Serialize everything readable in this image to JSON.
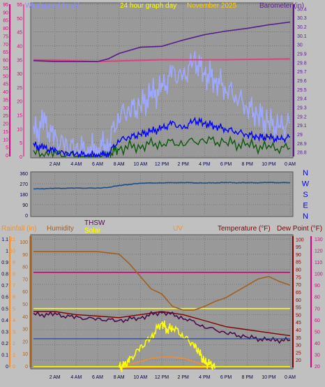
{
  "header": {
    "windspeed_label": "Windspeed (mph)",
    "graph_label": "24 hour graph day",
    "date_label": "November 2025",
    "barometer_label": "Barometer (in)"
  },
  "labels": {
    "rainfall": "Rainfall (in)",
    "humidity": "Humidity",
    "thsw": "THSW",
    "solar": "Solar",
    "uv": "UV",
    "temperature": "Temperature (°F)",
    "dew_point": "Dew Point (°F)"
  },
  "colors": {
    "wind_axis": "#e0007f",
    "barometer": "#5a1a8c",
    "wind_gust": "#9fa8ff",
    "wind_avg": "#0000ff",
    "wind_low": "#0a5a0a",
    "baro_red": "#e0407f",
    "direction": "#1a4f8c",
    "rain_axis": "#ff8c1a",
    "humidity": "#a06020",
    "thsw": "#4b0a4b",
    "solar": "#ffff00",
    "uv": "#ff8c1a",
    "temperature": "#800000",
    "dew_point": "#e0007f"
  },
  "x_ticks": [
    "2 AM",
    "4 AM",
    "6 AM",
    "8 AM",
    "10 AM",
    "12 PM",
    "2 PM",
    "4 PM",
    "6 PM",
    "8 PM",
    "10 PM",
    "0 AM"
  ],
  "chart_data": [
    {
      "type": "line",
      "name": "wind-barometer",
      "y_left_ticks": [
        "0",
        "5",
        "10",
        "15",
        "20",
        "25",
        "30",
        "35",
        "40",
        "45",
        "50",
        "55",
        "60",
        "65",
        "70",
        "75",
        "80",
        "85",
        "90",
        "95"
      ],
      "y_mid_ticks": [
        "0",
        "5",
        "10",
        "15",
        "20",
        "25",
        "30",
        "35",
        "40",
        "45",
        "50",
        "55"
      ],
      "y_right_ticks": [
        "28.8",
        "28.9",
        "29",
        "29.1",
        "29.2",
        "29.3",
        "29.4",
        "29.5",
        "29.6",
        "29.7",
        "29.8",
        "29.9",
        "30",
        "30.1",
        "30.2",
        "30.3",
        "30.4"
      ],
      "ylim_wind": [
        0,
        55
      ],
      "ylim_baro": [
        28.75,
        30.45
      ],
      "barometer": [
        [
          0,
          29.82
        ],
        [
          2,
          29.81
        ],
        [
          4,
          29.81
        ],
        [
          6,
          29.81
        ],
        [
          7,
          29.84
        ],
        [
          8,
          29.9
        ],
        [
          10,
          29.97
        ],
        [
          12,
          29.98
        ],
        [
          14,
          30.05
        ],
        [
          16,
          30.11
        ],
        [
          18,
          30.15
        ],
        [
          20,
          30.18
        ],
        [
          22,
          30.22
        ],
        [
          24,
          30.25
        ]
      ],
      "barometer_red": [
        [
          0,
          29.83
        ],
        [
          6,
          29.81
        ],
        [
          12,
          29.83
        ],
        [
          18,
          29.83
        ],
        [
          24,
          29.84
        ]
      ],
      "wind_gust_max": [
        [
          0,
          8
        ],
        [
          1,
          12
        ],
        [
          2,
          6
        ],
        [
          3,
          4
        ],
        [
          4,
          3
        ],
        [
          5,
          2
        ],
        [
          6,
          3
        ],
        [
          7,
          5
        ],
        [
          8,
          15
        ],
        [
          9,
          17
        ],
        [
          10,
          18
        ],
        [
          11,
          22
        ],
        [
          12,
          24
        ],
        [
          13,
          30
        ],
        [
          14,
          28
        ],
        [
          15,
          35
        ],
        [
          16,
          30
        ],
        [
          17,
          28
        ],
        [
          18,
          25
        ],
        [
          19,
          22
        ],
        [
          20,
          18
        ],
        [
          21,
          15
        ],
        [
          22,
          12
        ],
        [
          23,
          10
        ],
        [
          24,
          12
        ]
      ],
      "wind_avg": [
        [
          0,
          4
        ],
        [
          1,
          3
        ],
        [
          2,
          2
        ],
        [
          3,
          1
        ],
        [
          4,
          1
        ],
        [
          5,
          0.5
        ],
        [
          6,
          0.5
        ],
        [
          7,
          1
        ],
        [
          8,
          6
        ],
        [
          9,
          7
        ],
        [
          10,
          8
        ],
        [
          11,
          9
        ],
        [
          12,
          10
        ],
        [
          13,
          12
        ],
        [
          14,
          10
        ],
        [
          15,
          13
        ],
        [
          16,
          12
        ],
        [
          17,
          11
        ],
        [
          18,
          10
        ],
        [
          19,
          9
        ],
        [
          20,
          8
        ],
        [
          21,
          7
        ],
        [
          22,
          7
        ],
        [
          23,
          6
        ],
        [
          24,
          7
        ]
      ],
      "wind_low": [
        [
          0,
          1
        ],
        [
          2,
          0.5
        ],
        [
          4,
          0
        ],
        [
          6,
          0
        ],
        [
          7,
          0.5
        ],
        [
          8,
          3
        ],
        [
          10,
          4
        ],
        [
          12,
          5
        ],
        [
          14,
          5
        ],
        [
          16,
          6
        ],
        [
          18,
          5
        ],
        [
          20,
          4
        ],
        [
          22,
          3
        ],
        [
          24,
          3
        ]
      ]
    },
    {
      "type": "line",
      "name": "wind-direction",
      "y_left_ticks": [
        "0",
        "90",
        "180",
        "270",
        "360"
      ],
      "y_right_ticks": [
        "N",
        "E",
        "S",
        "W",
        "N"
      ],
      "ylim": [
        0,
        360
      ],
      "direction": [
        [
          0,
          225
        ],
        [
          2,
          230
        ],
        [
          4,
          232
        ],
        [
          6,
          232
        ],
        [
          7,
          238
        ],
        [
          8,
          255
        ],
        [
          9,
          265
        ],
        [
          10,
          275
        ],
        [
          12,
          278
        ],
        [
          14,
          280
        ],
        [
          16,
          276
        ],
        [
          18,
          280
        ],
        [
          20,
          278
        ],
        [
          22,
          280
        ],
        [
          24,
          279
        ]
      ]
    },
    {
      "type": "line",
      "name": "rain-temperature",
      "y_rain_ticks": [
        "0",
        "0.1",
        "0.2",
        "0.3",
        "0.4",
        "0.5",
        "0.6",
        "0.7",
        "0.8",
        "0.9",
        "1",
        "1.1"
      ],
      "y_hum_ticks": [
        "0",
        "10",
        "20",
        "30",
        "40",
        "50",
        "60",
        "70",
        "80",
        "90",
        "100"
      ],
      "y_uv_ticks": [
        "0",
        "1",
        "2",
        "3",
        "4",
        "5",
        "6",
        "7",
        "8",
        "9",
        "10",
        "11"
      ],
      "y_right_ticks_temp": [
        "20",
        "25",
        "30",
        "35",
        "40",
        "45",
        "50",
        "55",
        "60",
        "65",
        "70",
        "75",
        "80",
        "85",
        "90",
        "95",
        "100"
      ],
      "y_right_ticks_dew": [
        "20",
        "30",
        "40",
        "50",
        "60",
        "70",
        "80",
        "90",
        "100",
        "110",
        "120",
        "130"
      ],
      "ylim_temp": [
        15,
        102
      ],
      "temperature": [
        [
          0,
          52
        ],
        [
          2,
          52
        ],
        [
          4,
          50
        ],
        [
          6,
          49
        ],
        [
          8,
          48
        ],
        [
          10,
          50
        ],
        [
          12,
          52
        ],
        [
          14,
          50
        ],
        [
          16,
          46
        ],
        [
          18,
          42
        ],
        [
          20,
          40
        ],
        [
          22,
          38
        ],
        [
          24,
          36
        ]
      ],
      "dew_point": [
        [
          0,
          78
        ],
        [
          6,
          78
        ],
        [
          12,
          78
        ],
        [
          18,
          78
        ],
        [
          24,
          78
        ]
      ],
      "humidity": [
        [
          0,
          92
        ],
        [
          4,
          92
        ],
        [
          6,
          92
        ],
        [
          8,
          90
        ],
        [
          9,
          82
        ],
        [
          10,
          72
        ],
        [
          11,
          62
        ],
        [
          12,
          58
        ],
        [
          13,
          48
        ],
        [
          14,
          45
        ],
        [
          15,
          45
        ],
        [
          16,
          48
        ],
        [
          17,
          52
        ],
        [
          18,
          55
        ],
        [
          19,
          60
        ],
        [
          20,
          65
        ],
        [
          21,
          70
        ],
        [
          22,
          72
        ],
        [
          23,
          68
        ],
        [
          24,
          65
        ]
      ],
      "thsw": [
        [
          0,
          50
        ],
        [
          2,
          50
        ],
        [
          4,
          48
        ],
        [
          6,
          47
        ],
        [
          8,
          46
        ],
        [
          10,
          48
        ],
        [
          12,
          52
        ],
        [
          14,
          48
        ],
        [
          16,
          42
        ],
        [
          18,
          38
        ],
        [
          20,
          35
        ],
        [
          22,
          33
        ],
        [
          24,
          33
        ]
      ],
      "solar_line": [
        [
          0,
          54
        ],
        [
          24,
          54
        ]
      ],
      "solar": [
        [
          8,
          15
        ],
        [
          8.5,
          16
        ],
        [
          9,
          20
        ],
        [
          10,
          28
        ],
        [
          11,
          35
        ],
        [
          12,
          45
        ],
        [
          12.5,
          40
        ],
        [
          13,
          42
        ],
        [
          14,
          36
        ],
        [
          15,
          30
        ],
        [
          15.5,
          25
        ],
        [
          16,
          18
        ],
        [
          16.5,
          17
        ],
        [
          17,
          15
        ]
      ],
      "uv": [
        [
          8,
          15
        ],
        [
          9,
          17
        ],
        [
          10,
          19
        ],
        [
          11,
          21
        ],
        [
          12,
          22
        ],
        [
          13,
          22
        ],
        [
          14,
          21
        ],
        [
          15,
          19
        ],
        [
          16,
          16
        ],
        [
          16.5,
          15
        ]
      ]
    }
  ]
}
